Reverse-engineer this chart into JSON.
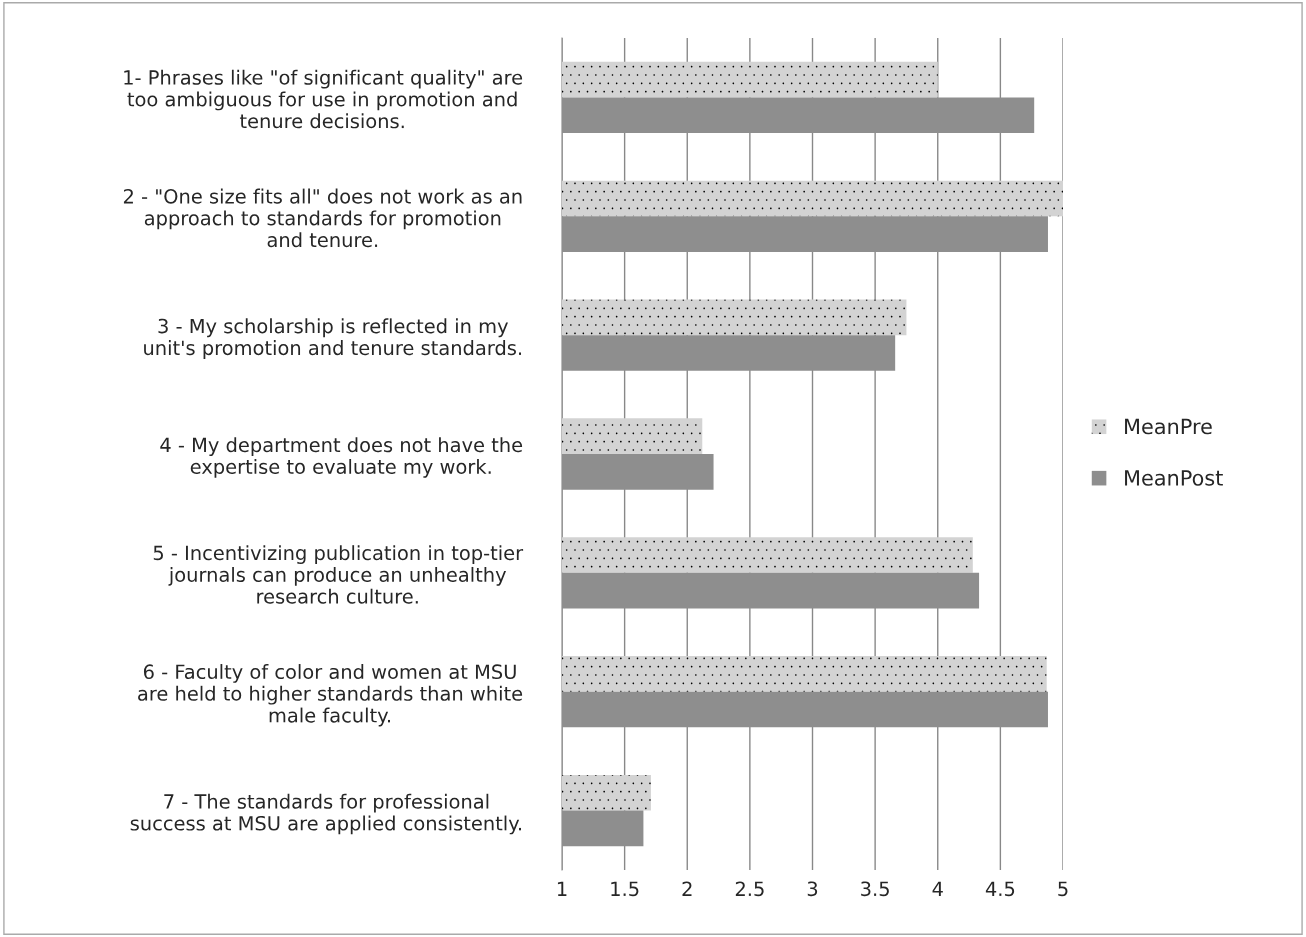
{
  "chart_data": {
    "type": "bar",
    "orientation": "horizontal",
    "categories": [
      "1- Phrases like \"of significant quality\" are\ntoo ambiguous for use in promotion and\ntenure decisions.",
      "2 - \"One size fits all\" does not work as an\napproach to standards for promotion\nand tenure.",
      "3 - My scholarship is reflected in my\nunit's promotion and tenure standards.",
      "4 - My department does not have the\nexpertise to evaluate my work.",
      "5 - Incentivizing publication in top-tier\njournals can produce an unhealthy\nresearch culture.",
      "6 - Faculty of color and women at MSU\nare held to higher standards than white\nmale faculty.",
      "7 - The standards for professional\nsuccess at MSU are applied consistently."
    ],
    "series": [
      {
        "name": "MeanPre",
        "color": "#d3d3d3",
        "values": [
          4.0,
          5.0,
          3.75,
          2.12,
          4.28,
          4.87,
          1.71
        ]
      },
      {
        "name": "MeanPost",
        "color": "#8e8e8e",
        "values": [
          4.77,
          4.88,
          3.66,
          2.21,
          4.33,
          4.88,
          1.65
        ]
      }
    ],
    "xlim": [
      1,
      5
    ],
    "xticks": [
      1,
      1.5,
      2,
      2.5,
      3,
      3.5,
      4,
      4.5,
      5
    ],
    "grid": "x",
    "legend": "right"
  }
}
